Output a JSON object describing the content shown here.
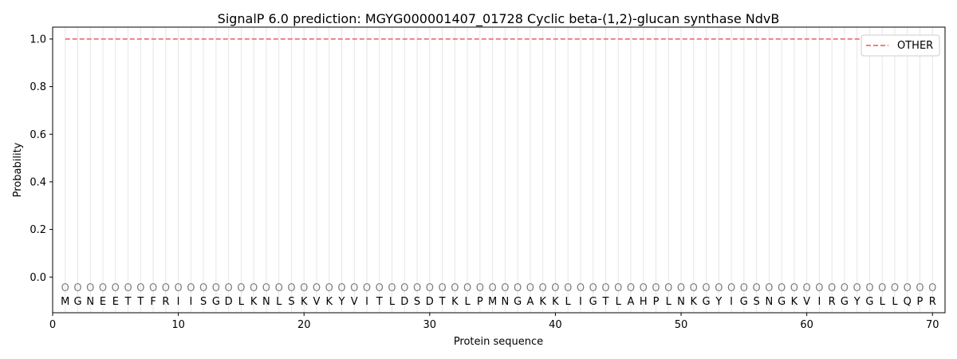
{
  "chart_data": {
    "type": "line",
    "title": "SignalP 6.0 prediction: MGYG000001407_01728 Cyclic beta-(1,2)-glucan synthase NdvB",
    "xlabel": "Protein sequence",
    "ylabel": "Probability",
    "xlim": [
      0,
      71
    ],
    "ylim": [
      -0.15,
      1.05
    ],
    "x_ticks": [
      0,
      10,
      20,
      30,
      40,
      50,
      60,
      70
    ],
    "y_ticks": [
      0.0,
      0.2,
      0.4,
      0.6,
      0.8,
      1.0
    ],
    "x_tick_labels": [
      "0",
      "10",
      "20",
      "30",
      "40",
      "50",
      "60",
      "70"
    ],
    "y_tick_labels": [
      "0.0",
      "0.2",
      "0.4",
      "0.6",
      "0.8",
      "1.0"
    ],
    "legend_position": "top-right",
    "sequence": [
      "M",
      "G",
      "N",
      "E",
      "E",
      "T",
      "T",
      "F",
      "R",
      "I",
      "I",
      "S",
      "G",
      "D",
      "L",
      "K",
      "N",
      "L",
      "S",
      "K",
      "V",
      "K",
      "Y",
      "V",
      "I",
      "T",
      "L",
      "D",
      "S",
      "D",
      "T",
      "K",
      "L",
      "P",
      "M",
      "N",
      "G",
      "A",
      "K",
      "K",
      "L",
      "I",
      "G",
      "T",
      "L",
      "A",
      "H",
      "P",
      "L",
      "N",
      "K",
      "G",
      "Y",
      "I",
      "G",
      "S",
      "N",
      "G",
      "K",
      "V",
      "I",
      "R",
      "G",
      "Y",
      "G",
      "L",
      "L",
      "Q",
      "P",
      "R"
    ],
    "region_label": "O",
    "series": [
      {
        "name": "OTHER",
        "color": "#f08080",
        "style": "dashed",
        "x_start": 1,
        "x_end": 70,
        "value": 1.0
      }
    ]
  }
}
